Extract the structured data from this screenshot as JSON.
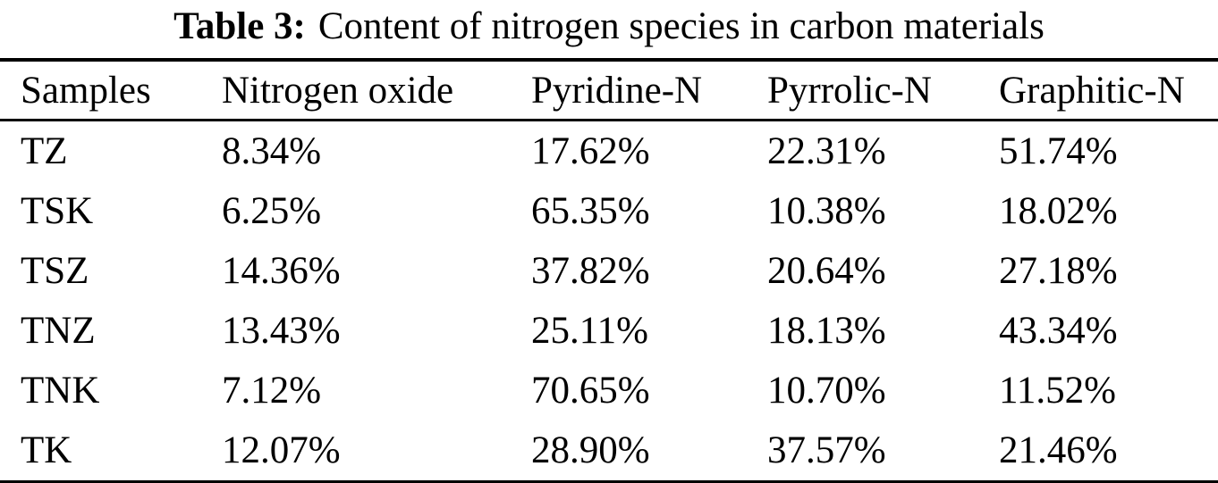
{
  "title": {
    "label": "Table 3:",
    "text": "Content of nitrogen species in carbon materials"
  },
  "table": {
    "columns": [
      "Samples",
      "Nitrogen oxide",
      "Pyridine-N",
      "Pyrrolic-N",
      "Graphitic-N"
    ],
    "rows": [
      {
        "sample": "TZ",
        "values": [
          "8.34%",
          "17.62%",
          "22.31%",
          "51.74%"
        ]
      },
      {
        "sample": "TSK",
        "values": [
          "6.25%",
          "65.35%",
          "10.38%",
          "18.02%"
        ]
      },
      {
        "sample": "TSZ",
        "values": [
          "14.36%",
          "37.82%",
          "20.64%",
          "27.18%"
        ]
      },
      {
        "sample": "TNZ",
        "values": [
          "13.43%",
          "25.11%",
          "18.13%",
          "43.34%"
        ]
      },
      {
        "sample": "TNK",
        "values": [
          "7.12%",
          "70.65%",
          "10.70%",
          "11.52%"
        ]
      },
      {
        "sample": "TK",
        "values": [
          "12.07%",
          "28.90%",
          "37.57%",
          "21.46%"
        ]
      }
    ]
  },
  "colors": {
    "text": "#000000",
    "background": "#ffffff",
    "rule": "#000000"
  }
}
